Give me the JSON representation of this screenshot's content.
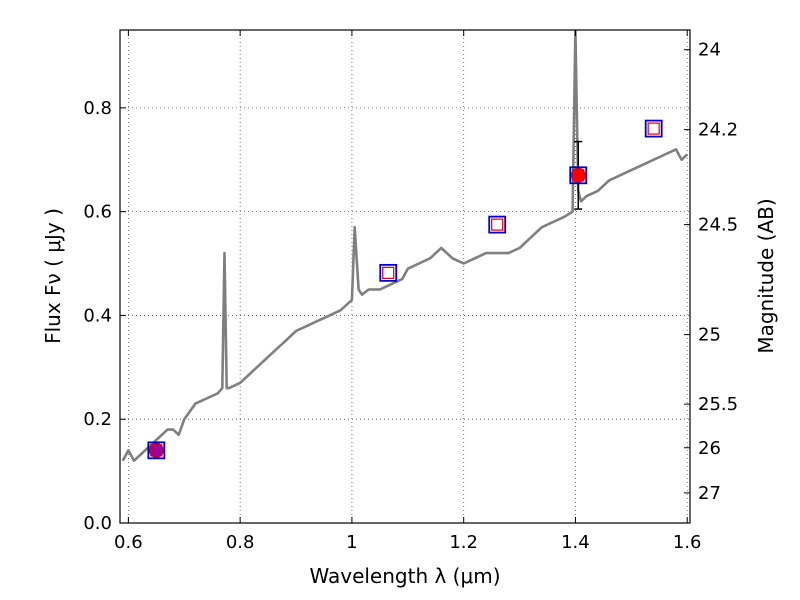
{
  "chart_data": {
    "type": "line",
    "title": "",
    "xlabel": "Wavelength  λ (μm)",
    "ylabel": "Flux  Fν  ( μJy )",
    "y2label": "Magnitude (AB)",
    "xlim": [
      0.585,
      1.605
    ],
    "ylim": [
      0.0,
      0.95
    ],
    "grid": true,
    "x_ticks": [
      0.6,
      0.8,
      1.0,
      1.2,
      1.4,
      1.6
    ],
    "x_tick_labels": [
      "0.6",
      "0.8",
      "1",
      "1.2",
      "1.4",
      "1.6"
    ],
    "y_ticks": [
      0.0,
      0.2,
      0.4,
      0.6,
      0.8
    ],
    "y_tick_labels": [
      "0.0",
      "0.2",
      "0.4",
      "0.6",
      "0.8"
    ],
    "y2_ticks": [
      {
        "label": "24",
        "flux": 0.912
      },
      {
        "label": "24.2",
        "flux": 0.758
      },
      {
        "label": "24.5",
        "flux": 0.575
      },
      {
        "label": "25",
        "flux": 0.363
      },
      {
        "label": "25.5",
        "flux": 0.229
      },
      {
        "label": "26",
        "flux": 0.145
      },
      {
        "label": "27",
        "flux": 0.058
      }
    ],
    "colors": {
      "spectrum": "#7f7f7f",
      "model_box": "#0000cc",
      "model_inner": "#dd0000",
      "observed_red": "#ff0000",
      "observed_purple": "#990099",
      "errorbar": "#000000",
      "grid": "#555555"
    },
    "series": [
      {
        "type": "line",
        "x": [
          0.59,
          0.6,
          0.61,
          0.62,
          0.63,
          0.64,
          0.65,
          0.66,
          0.67,
          0.68,
          0.69,
          0.7,
          0.72,
          0.74,
          0.76,
          0.768,
          0.772,
          0.776,
          0.78,
          0.8,
          0.82,
          0.84,
          0.86,
          0.88,
          0.9,
          0.92,
          0.94,
          0.96,
          0.98,
          1.0,
          1.005,
          1.012,
          1.018,
          1.03,
          1.05,
          1.07,
          1.09,
          1.1,
          1.12,
          1.14,
          1.16,
          1.18,
          1.2,
          1.22,
          1.24,
          1.26,
          1.28,
          1.3,
          1.32,
          1.34,
          1.36,
          1.38,
          1.395,
          1.4,
          1.405,
          1.41,
          1.42,
          1.44,
          1.46,
          1.48,
          1.5,
          1.52,
          1.54,
          1.56,
          1.58,
          1.59,
          1.6
        ],
        "y": [
          0.12,
          0.14,
          0.12,
          0.13,
          0.14,
          0.15,
          0.16,
          0.17,
          0.18,
          0.18,
          0.17,
          0.2,
          0.23,
          0.24,
          0.25,
          0.26,
          0.52,
          0.26,
          0.26,
          0.27,
          0.29,
          0.31,
          0.33,
          0.35,
          0.37,
          0.38,
          0.39,
          0.4,
          0.41,
          0.43,
          0.57,
          0.45,
          0.44,
          0.45,
          0.45,
          0.46,
          0.47,
          0.49,
          0.5,
          0.51,
          0.53,
          0.51,
          0.5,
          0.51,
          0.52,
          0.52,
          0.52,
          0.53,
          0.55,
          0.57,
          0.58,
          0.59,
          0.6,
          0.95,
          0.64,
          0.62,
          0.63,
          0.64,
          0.66,
          0.67,
          0.68,
          0.69,
          0.7,
          0.71,
          0.72,
          0.7,
          0.71
        ]
      },
      {
        "type": "model-photometry",
        "points": [
          {
            "x": 0.65,
            "y": 0.14
          },
          {
            "x": 1.065,
            "y": 0.482
          },
          {
            "x": 1.26,
            "y": 0.575
          },
          {
            "x": 1.405,
            "y": 0.67
          },
          {
            "x": 1.54,
            "y": 0.76
          }
        ]
      },
      {
        "type": "observed-photometry",
        "points": [
          {
            "x": 0.65,
            "y": 0.14,
            "yerr": 0.015,
            "color": "purple"
          },
          {
            "x": 1.405,
            "y": 0.67,
            "yerr": 0.065,
            "color": "red"
          }
        ]
      }
    ]
  }
}
